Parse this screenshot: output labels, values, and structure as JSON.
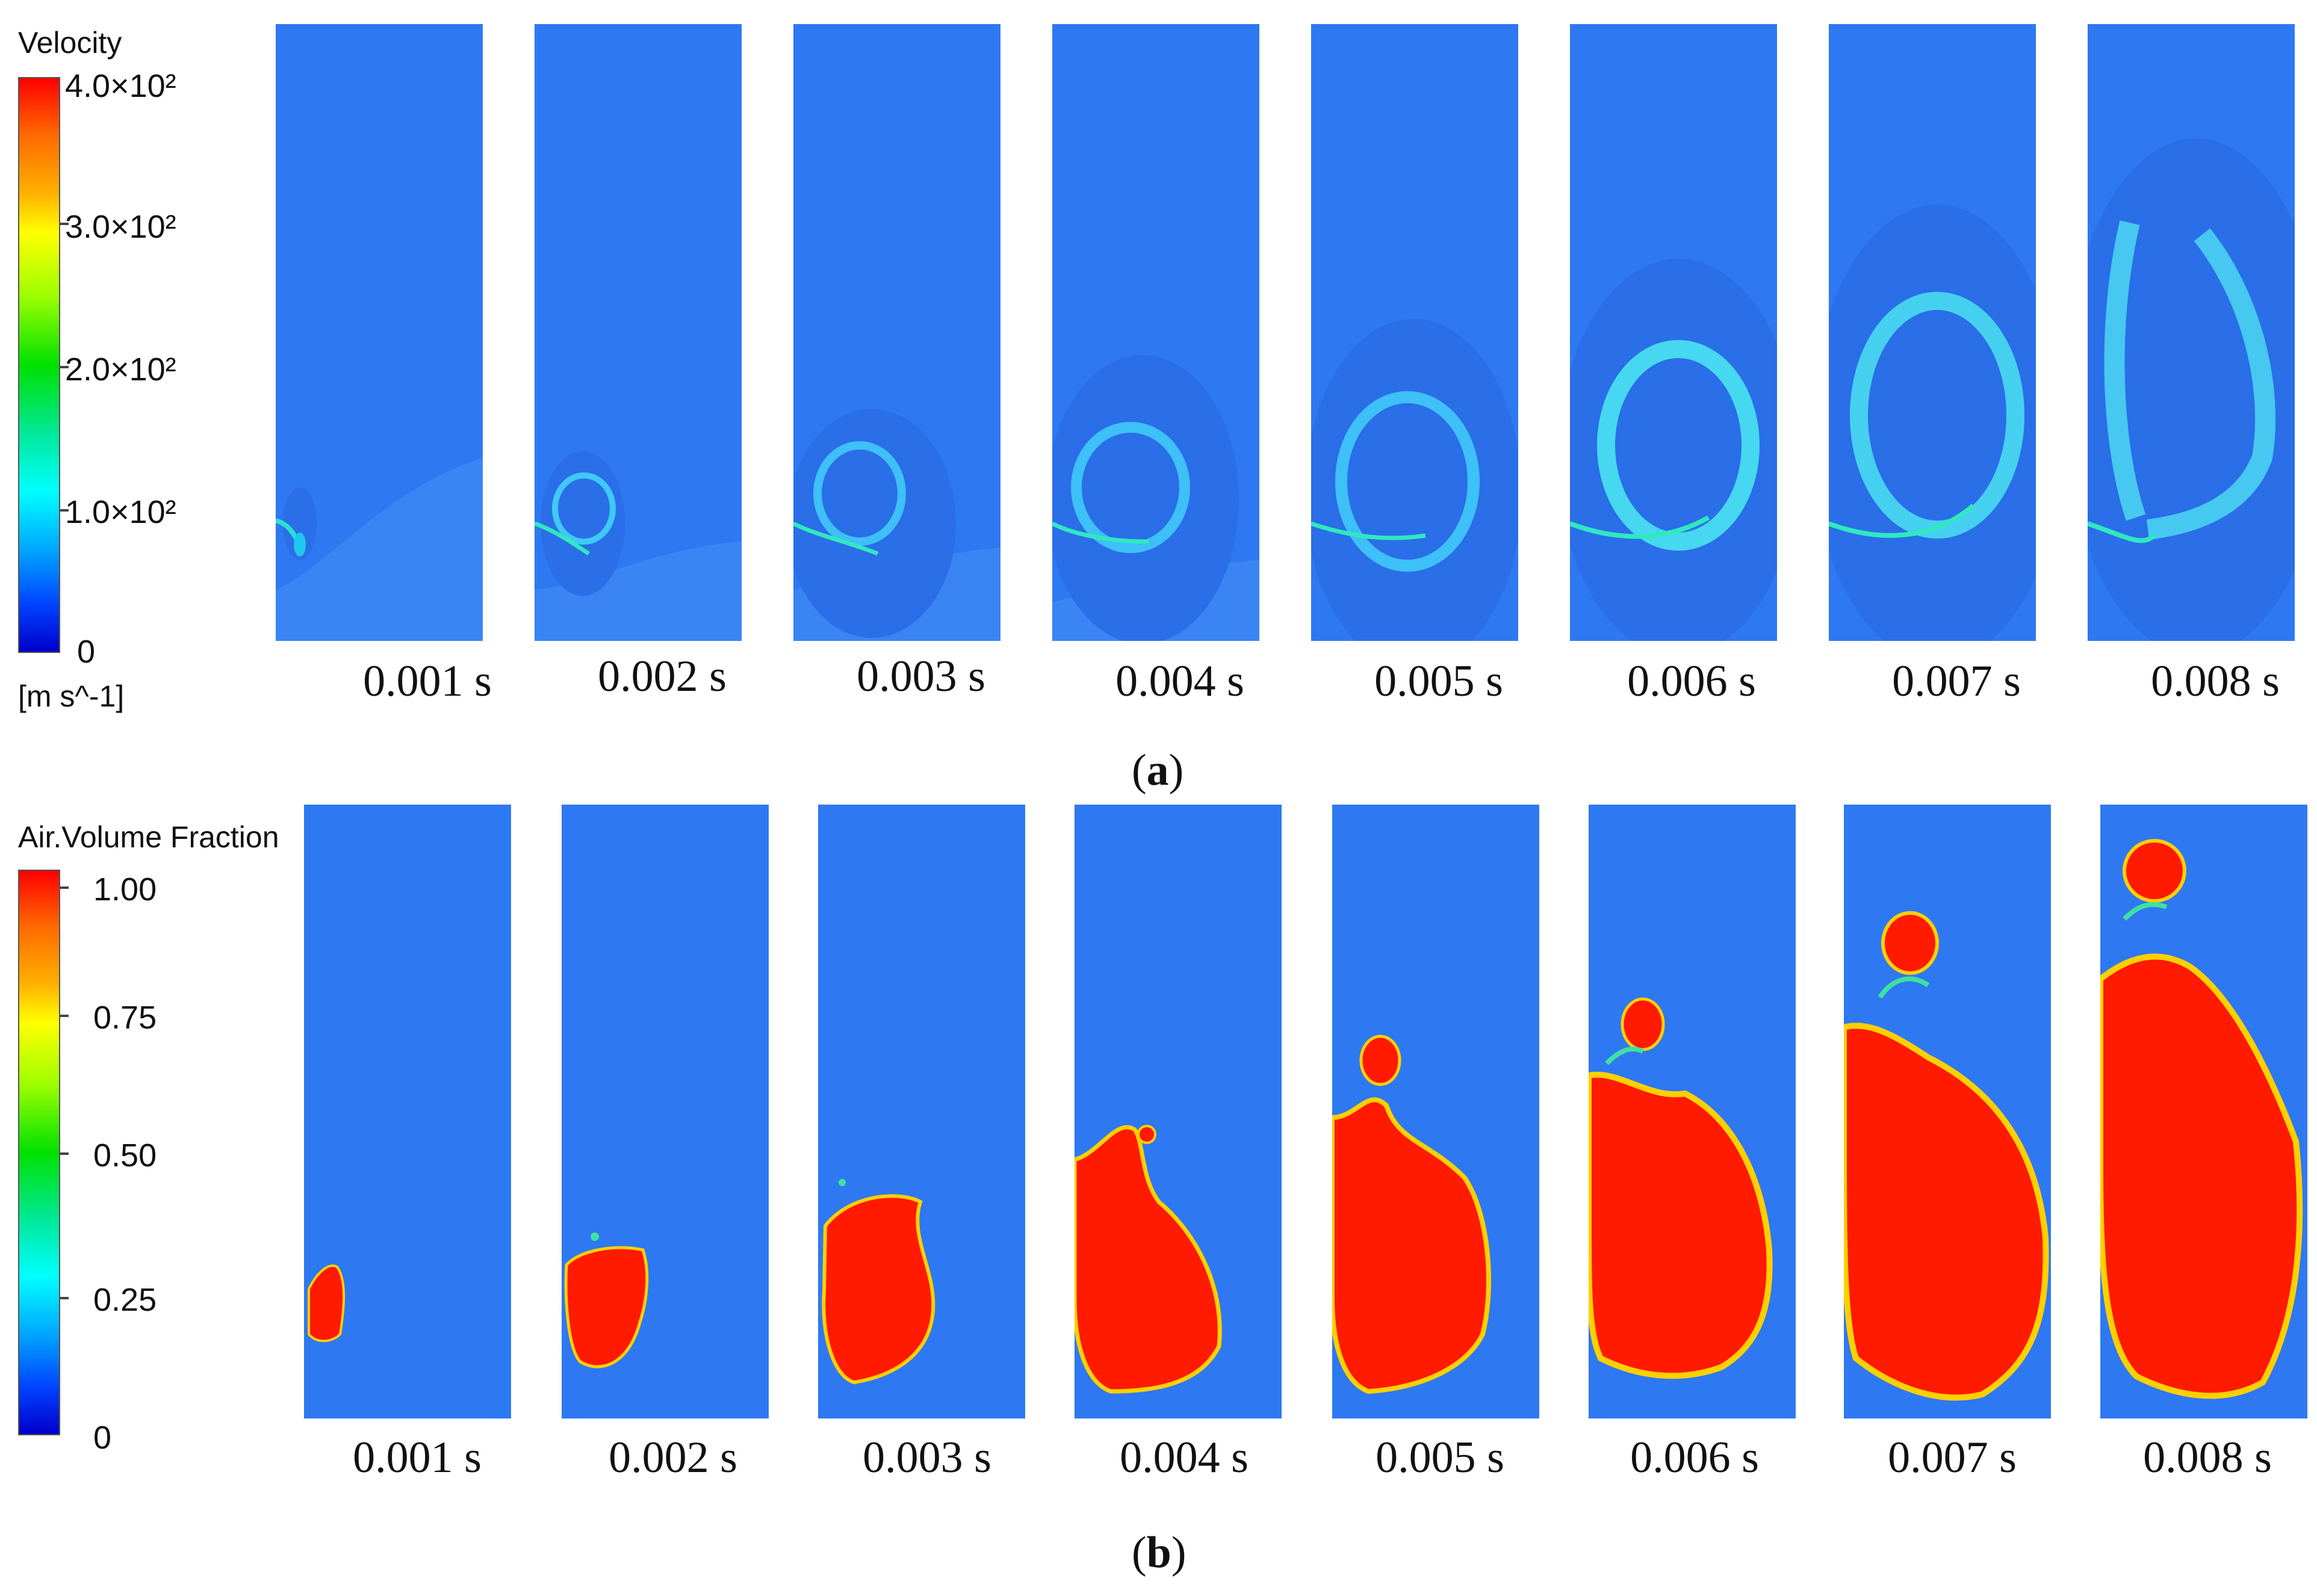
{
  "figure_a": {
    "caption_open": "(",
    "caption_letter": "a",
    "caption_close": ")",
    "colorbar": {
      "title": "Velocity",
      "unit": "[m s^-1]",
      "labels": [
        "4.0×10²",
        "3.0×10²",
        "2.0×10²",
        "1.0×10²",
        "0"
      ],
      "max_value": 400,
      "min_value": 0
    },
    "time_labels": [
      "0.001 s",
      "0.002 s",
      "0.003 s",
      "0.004 s",
      "0.005 s",
      "0.006 s",
      "0.007 s",
      "0.008 s"
    ],
    "background_color": "#2e78f2"
  },
  "figure_b": {
    "caption_open": "(",
    "caption_letter": "b",
    "caption_close": ")",
    "colorbar": {
      "title": "Air.Volume Fraction",
      "labels": [
        "1.00",
        "0.75",
        "0.50",
        "0.25",
        "0"
      ],
      "max_value": 1.0,
      "min_value": 0
    },
    "time_labels": [
      "0.001 s",
      "0.002 s",
      "0.003 s",
      "0.004 s",
      "0.005 s",
      "0.006 s",
      "0.007 s",
      "0.008 s"
    ],
    "bubble_color": "#ff1a00",
    "background_color": "#2e78f2"
  }
}
